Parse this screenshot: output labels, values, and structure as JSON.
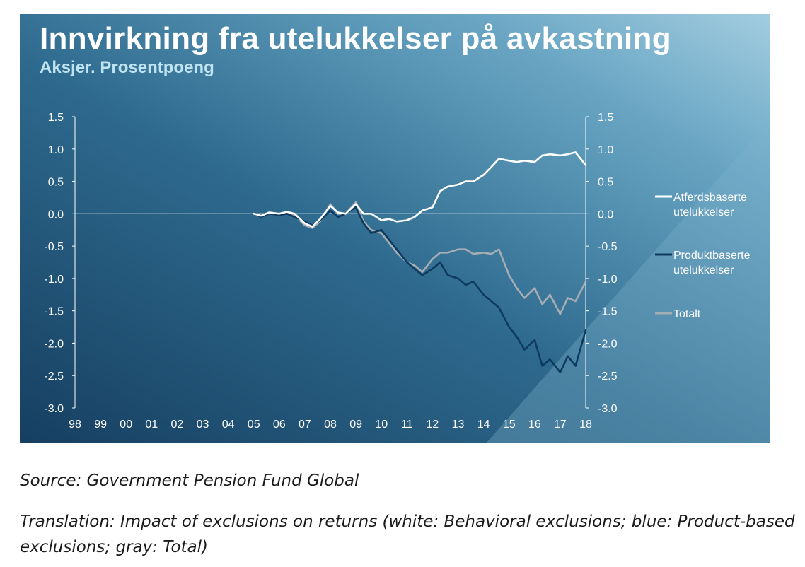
{
  "chart_data": {
    "type": "line",
    "title": "Innvirkning fra utelukkelser på avkastning",
    "subtitle": "Aksjer. Prosentpoeng",
    "xlabel": "",
    "ylabel": "",
    "x_tick_labels": [
      "98",
      "99",
      "00",
      "01",
      "02",
      "03",
      "04",
      "05",
      "06",
      "07",
      "08",
      "09",
      "10",
      "11",
      "12",
      "13",
      "14",
      "15",
      "16",
      "17",
      "18"
    ],
    "y_tick_labels": [
      "1.5",
      "1.0",
      "0.5",
      "0.0",
      "-0.5",
      "-1.0",
      "-1.5",
      "-2.0",
      "-2.5",
      "-3.0"
    ],
    "xlim": [
      1998,
      2018
    ],
    "ylim": [
      -3.0,
      1.5
    ],
    "legend_position": "right",
    "series": [
      {
        "name": "Atferdsbaserte utelukkelser",
        "color": "#ffffff",
        "x": [
          2005.0,
          2005.3,
          2005.6,
          2006.0,
          2006.3,
          2006.6,
          2007.0,
          2007.3,
          2007.6,
          2008.0,
          2008.3,
          2008.6,
          2009.0,
          2009.3,
          2009.6,
          2010.0,
          2010.3,
          2010.6,
          2011.0,
          2011.3,
          2011.6,
          2012.0,
          2012.3,
          2012.6,
          2013.0,
          2013.3,
          2013.6,
          2014.0,
          2014.3,
          2014.6,
          2015.0,
          2015.3,
          2015.6,
          2016.0,
          2016.3,
          2016.6,
          2017.0,
          2017.3,
          2017.6,
          2018.0
        ],
        "y": [
          0.0,
          -0.03,
          0.02,
          0.0,
          0.03,
          0.0,
          -0.15,
          -0.2,
          -0.08,
          0.12,
          0.02,
          0.0,
          0.15,
          0.0,
          0.0,
          -0.1,
          -0.08,
          -0.12,
          -0.1,
          -0.05,
          0.05,
          0.1,
          0.35,
          0.42,
          0.45,
          0.5,
          0.5,
          0.6,
          0.72,
          0.85,
          0.82,
          0.8,
          0.82,
          0.8,
          0.9,
          0.92,
          0.9,
          0.92,
          0.95,
          0.75
        ]
      },
      {
        "name": "Produktbaserte utelukkelser",
        "color": "#0f3a5f",
        "x": [
          2005.0,
          2005.3,
          2005.6,
          2006.0,
          2006.3,
          2006.6,
          2007.0,
          2007.3,
          2007.6,
          2008.0,
          2008.3,
          2008.6,
          2009.0,
          2009.3,
          2009.6,
          2010.0,
          2010.3,
          2010.6,
          2011.0,
          2011.3,
          2011.6,
          2012.0,
          2012.3,
          2012.6,
          2013.0,
          2013.3,
          2013.6,
          2014.0,
          2014.3,
          2014.6,
          2015.0,
          2015.3,
          2015.6,
          2016.0,
          2016.3,
          2016.6,
          2017.0,
          2017.3,
          2017.6,
          2018.0
        ],
        "y": [
          0.0,
          -0.05,
          0.0,
          -0.02,
          0.0,
          -0.05,
          -0.12,
          -0.18,
          -0.1,
          0.05,
          -0.05,
          0.0,
          0.1,
          -0.15,
          -0.3,
          -0.25,
          -0.4,
          -0.55,
          -0.75,
          -0.85,
          -0.95,
          -0.85,
          -0.75,
          -0.95,
          -1.0,
          -1.1,
          -1.05,
          -1.25,
          -1.35,
          -1.45,
          -1.75,
          -1.9,
          -2.1,
          -1.95,
          -2.35,
          -2.25,
          -2.45,
          -2.2,
          -2.35,
          -1.8
        ]
      },
      {
        "name": "Totalt",
        "color": "#a6adb3",
        "x": [
          2005.0,
          2005.3,
          2005.6,
          2006.0,
          2006.3,
          2006.6,
          2007.0,
          2007.3,
          2007.6,
          2008.0,
          2008.3,
          2008.6,
          2009.0,
          2009.3,
          2009.6,
          2010.0,
          2010.3,
          2010.6,
          2011.0,
          2011.3,
          2011.6,
          2012.0,
          2012.3,
          2012.6,
          2013.0,
          2013.3,
          2013.6,
          2014.0,
          2014.3,
          2014.6,
          2015.0,
          2015.3,
          2015.6,
          2016.0,
          2016.3,
          2016.6,
          2017.0,
          2017.3,
          2017.6,
          2018.0
        ],
        "y": [
          0.0,
          -0.05,
          0.0,
          -0.02,
          0.02,
          -0.02,
          -0.18,
          -0.22,
          -0.12,
          0.15,
          0.0,
          0.0,
          0.18,
          -0.12,
          -0.25,
          -0.3,
          -0.45,
          -0.6,
          -0.75,
          -0.8,
          -0.9,
          -0.7,
          -0.6,
          -0.6,
          -0.55,
          -0.55,
          -0.62,
          -0.6,
          -0.62,
          -0.55,
          -0.95,
          -1.15,
          -1.3,
          -1.15,
          -1.4,
          -1.25,
          -1.55,
          -1.3,
          -1.35,
          -1.05
        ]
      }
    ]
  },
  "footnotes": {
    "source": "Source: Government Pension Fund Global",
    "translation": "Translation: Impact of exclusions on returns (white: Behavioral exclusions; blue: Product-based exclusions; gray: Total)"
  },
  "colors": {
    "panel_dark": "#1b4a6e",
    "panel_light": "#8fc0d8",
    "text_white": "#ffffff",
    "subtitle": "#bfe3f0"
  }
}
